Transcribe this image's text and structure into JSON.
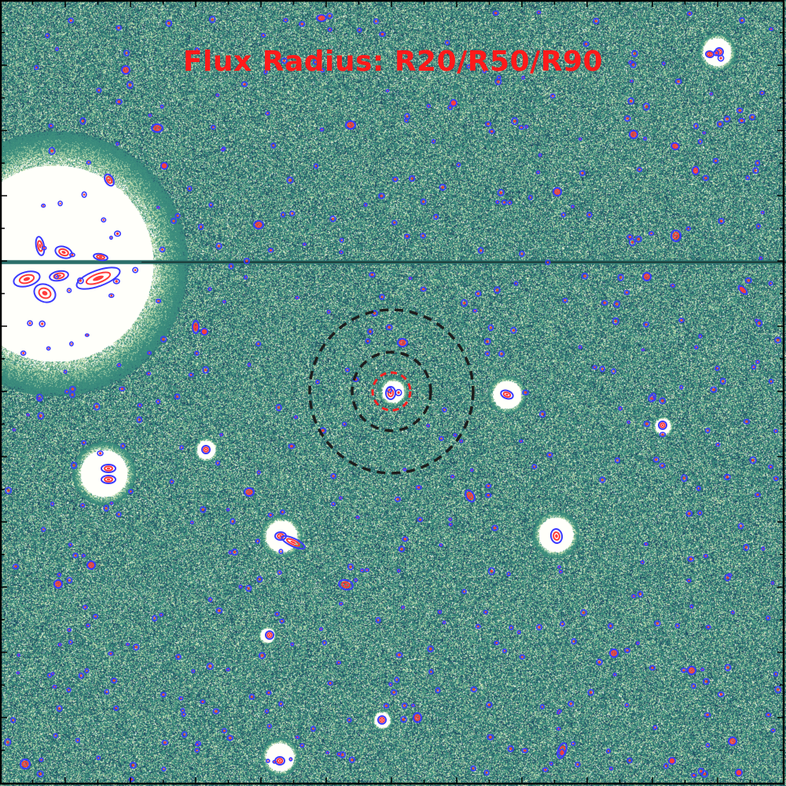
{
  "title": "Flux Radius: R20/R50/R90",
  "colors": {
    "background_base": "#3f8f86",
    "background_dark": "#183f5c",
    "background_light": "#d7ecb9",
    "saturated": "#ffffff",
    "title": "#ff1a1a",
    "ellipse_outer": "#3b3bff",
    "ellipse_inner": "#ff3b3b",
    "aperture_dashed": "#1c1c1c",
    "target_dashed": "#ff2020",
    "frame": "#000000"
  },
  "image": {
    "colormap": "yellow-green-blue",
    "frame_ticks": "inward",
    "bright_star_upper_left": true,
    "horizontal_artifact_line": true
  }
}
